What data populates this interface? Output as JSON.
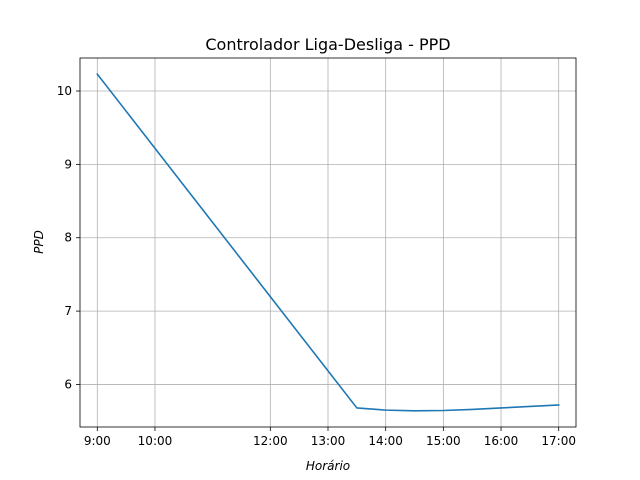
{
  "chart_data": {
    "type": "line",
    "title": "Controlador Liga-Desliga - PPD",
    "xlabel": "Horário",
    "ylabel": "PPD",
    "grid": true,
    "xlim": [
      "8:42",
      "17:18"
    ],
    "ylim": [
      5.42,
      10.45
    ],
    "xticks": [
      "9:00",
      "10:00",
      "12:00",
      "13:00",
      "14:00",
      "15:00",
      "16:00",
      "17:00"
    ],
    "yticks": [
      6,
      7,
      8,
      9,
      10
    ],
    "series": [
      {
        "color": "#1f77b4",
        "x": [
          "9:00",
          "13:30",
          "14:00",
          "14:30",
          "15:00",
          "15:30",
          "16:00",
          "16:30",
          "17:00"
        ],
        "y": [
          10.23,
          5.68,
          5.65,
          5.64,
          5.645,
          5.66,
          5.68,
          5.7,
          5.72
        ]
      }
    ]
  }
}
